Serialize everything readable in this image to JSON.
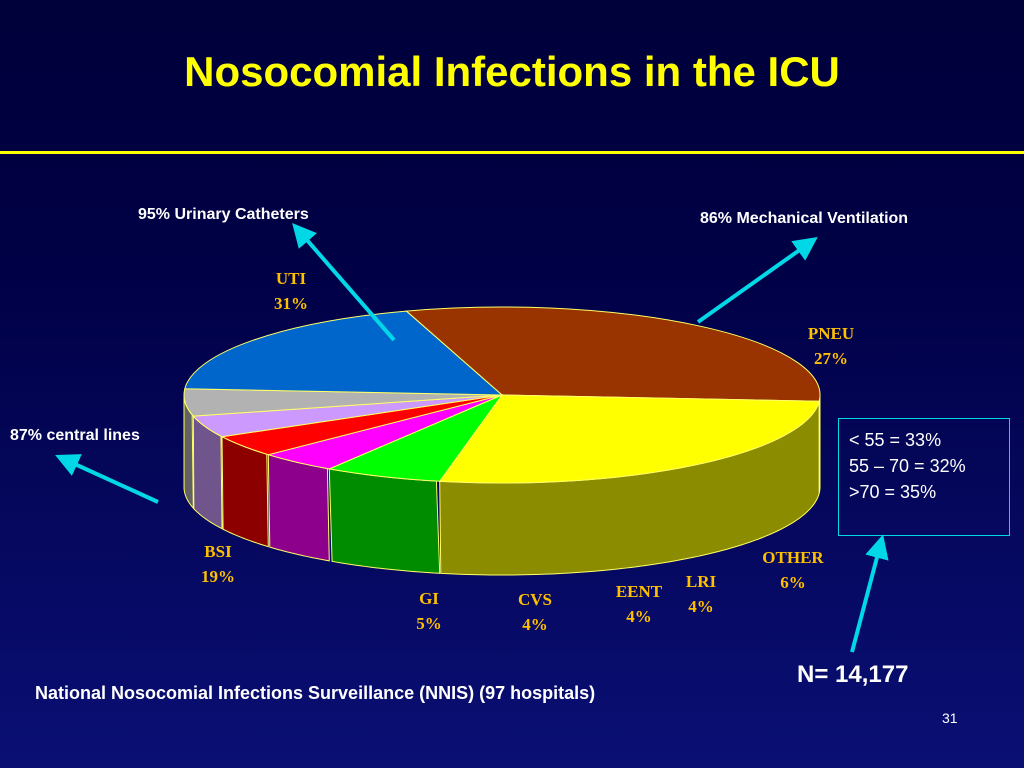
{
  "slide": {
    "title": "Nosocomial Infections in the ICU",
    "page_number": "31",
    "source": "National Nosocomial Infections Surveillance (NNIS) (97 hospitals)",
    "total": "N= 14,177",
    "colors": {
      "title": "#ffff00",
      "label": "#ffc000",
      "arrow": "#00d8e8"
    }
  },
  "annotations": {
    "uti": "95% Urinary Catheters",
    "pneu": "86% Mechanical Ventilation",
    "bsi": "87% central lines"
  },
  "age_box": {
    "lines": [
      "< 55 = 33%",
      "55 – 70 = 32%",
      ">70 = 35%"
    ]
  },
  "chart_data": {
    "type": "pie",
    "title": "",
    "series": [
      {
        "label": "UTI",
        "pct_label": "31%",
        "value": 31,
        "color": "#993300"
      },
      {
        "label": "PNEU",
        "pct_label": "27%",
        "value": 27,
        "color": "#ffff00"
      },
      {
        "label": "OTHER",
        "pct_label": "6%",
        "value": 6,
        "color": "#00ff00"
      },
      {
        "label": "LRI",
        "pct_label": "4%",
        "value": 4,
        "color": "#ff00ff"
      },
      {
        "label": "EENT",
        "pct_label": "4%",
        "value": 4,
        "color": "#ff0000"
      },
      {
        "label": "CVS",
        "pct_label": "4%",
        "value": 4,
        "color": "#cc99ff"
      },
      {
        "label": "GI",
        "pct_label": "5%",
        "value": 5,
        "color": "#b2b2b2"
      },
      {
        "label": "BSI",
        "pct_label": "19%",
        "value": 19,
        "color": "#0066cc"
      }
    ]
  }
}
